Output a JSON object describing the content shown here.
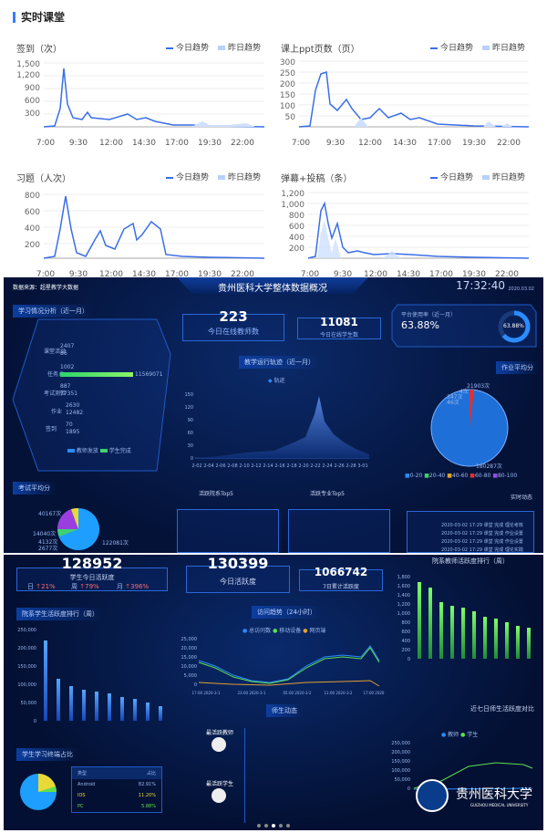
{
  "header": {
    "title": "实时课堂"
  },
  "legend": {
    "today": "今日趋势",
    "yesterday": "昨日趋势"
  },
  "charts": [
    {
      "title": "签到（次）",
      "yticks": [
        "1,500",
        "1,200",
        "900",
        "600",
        "300"
      ],
      "xticks": [
        "7:00",
        "9:30",
        "12:00",
        "14:30",
        "17:00",
        "19:30",
        "22:00"
      ]
    },
    {
      "title": "课上ppt页数（页）",
      "yticks": [
        "300",
        "250",
        "200",
        "150",
        "100",
        "50"
      ],
      "xticks": [
        "7:00",
        "9:30",
        "12:00",
        "14:30",
        "17:00",
        "19:30",
        "22:00"
      ]
    },
    {
      "title": "习题（人次）",
      "yticks": [
        "800",
        "600",
        "400",
        "200"
      ],
      "xticks": [
        "7:00",
        "9:30",
        "12:00",
        "14:30",
        "17:00",
        "19:30",
        "22:00"
      ]
    },
    {
      "title": "弹幕+投稿（条）",
      "yticks": [
        "1,200",
        "1,000",
        "800",
        "600",
        "400",
        "200"
      ],
      "xticks": [
        "7:00",
        "9:30",
        "12:00",
        "14:30",
        "17:00",
        "19:30",
        "22:00"
      ]
    }
  ],
  "dash1": {
    "source": "数据来源：超星教学大数据",
    "title": "贵州医科大学整体数据概况",
    "time": "17:32:40",
    "date": "2020.03.02",
    "learn_title": "学习情况分析（近一月）",
    "learn": [
      [
        "2407",
        "86"
      ],
      [
        "1002",
        "11569071"
      ],
      [
        "887",
        "77351"
      ],
      [
        "2630",
        "12482"
      ],
      [
        "70",
        "1895"
      ]
    ],
    "learn_legend": [
      "教师发放",
      "学生完成"
    ],
    "online_teachers": "223",
    "online_teachers_label": "今日在线教师数",
    "online_students": "11081",
    "online_students_label": "今日在线学生数",
    "usage_label": "平台使用率（近一月）",
    "usage": "63.88%",
    "traj_title": "教学运行轨迹（近一月）",
    "traj_legend": "轨迹",
    "traj_y": [
      "150",
      "120",
      "90",
      "60",
      "30",
      "0"
    ],
    "traj_x": [
      "2-02",
      "2-04",
      "2-06",
      "2-08",
      "2-10",
      "2-12",
      "2-14",
      "2-16",
      "2-18",
      "2-20",
      "2-22",
      "2-24",
      "2-26",
      "2-28",
      "3-01"
    ],
    "hw_title": "作业平均分",
    "hw_labels": [
      "21903次",
      "4次",
      "347次",
      "46次",
      "180287次"
    ],
    "hw_legend": [
      "0-20",
      "20-40",
      "40-60",
      "60-80",
      "80-100"
    ],
    "exam_title": "考试平均分",
    "exam_labels": [
      "40167次",
      "14040次",
      "4132次",
      "2677次",
      "122081次"
    ],
    "top5a": "活跃院系Top5",
    "top5b": "活跃专业Top5",
    "rt": "实时动态",
    "rt_items": [
      "2020-03-02 17:29 课堂 完成 理论考核",
      "2020-03-02 17:29 课堂 完成 作业设置",
      "2020-03-02 17:29 课堂 完成 作业设置",
      "2020-03-02 17:29 课堂 完成 理论实践"
    ]
  },
  "dash2": {
    "stu_active": "128952",
    "stu_active_label": "学生今日活跃度",
    "day": "日",
    "day_v": "21%",
    "week": "周",
    "week_v": "79%",
    "month": "月",
    "month_v": "396%",
    "today_active": "130399",
    "today_active_label": "今日活跃度",
    "seven": "1066742",
    "seven_label": "7日累计活跃度",
    "teacher_rank": "院系教师活跃度排行（周）",
    "student_rank": "院系学生活跃度排行（周）",
    "trend_title": "访问趋势（24小时）",
    "trend_legend": [
      "总访问数",
      "移动设备",
      "网页端"
    ],
    "trend_y": [
      "25,000",
      "20,000",
      "15,000",
      "10,000",
      "5,000",
      "0"
    ],
    "trend_x": [
      "17:00 2020-3-1",
      "23:00 2020-3-1",
      "05:00 2020-3-2",
      "11:00 2020-3-2",
      "17:00 2020"
    ],
    "tr_y": [
      "1,800",
      "1,600",
      "1,400",
      "1,200",
      "1,000",
      "800",
      "600",
      "400",
      "200",
      "0"
    ],
    "sr_y": [
      "250,000",
      "200,000",
      "150,000",
      "100,000",
      "50,000",
      "0"
    ],
    "dyn_title": "师生动态",
    "teacher_lbl": "最活跃教师",
    "student_lbl": "最活跃学生",
    "device_title": "学生学习终端占比",
    "device_head": [
      "类型",
      "占比"
    ],
    "device_rows": [
      [
        "Android",
        "82.91%"
      ],
      [
        "IOS",
        "11.20%"
      ],
      [
        "PC",
        "5.88%"
      ]
    ],
    "week_title": "近七日师生活跃度对比",
    "week_legend": [
      "教师",
      "学生"
    ],
    "week_y": [
      "250,000",
      "200,000",
      "150,000",
      "100,000",
      "50,000",
      "0"
    ],
    "logo_text": "贵州医科大学",
    "logo_en": "GUIZHOU MEDICAL UNIVERSITY"
  },
  "colors": {
    "accent": "#3b7cff",
    "dash_bg": "#041238",
    "green": "#5fe04c",
    "blue": "#2a8cff"
  }
}
